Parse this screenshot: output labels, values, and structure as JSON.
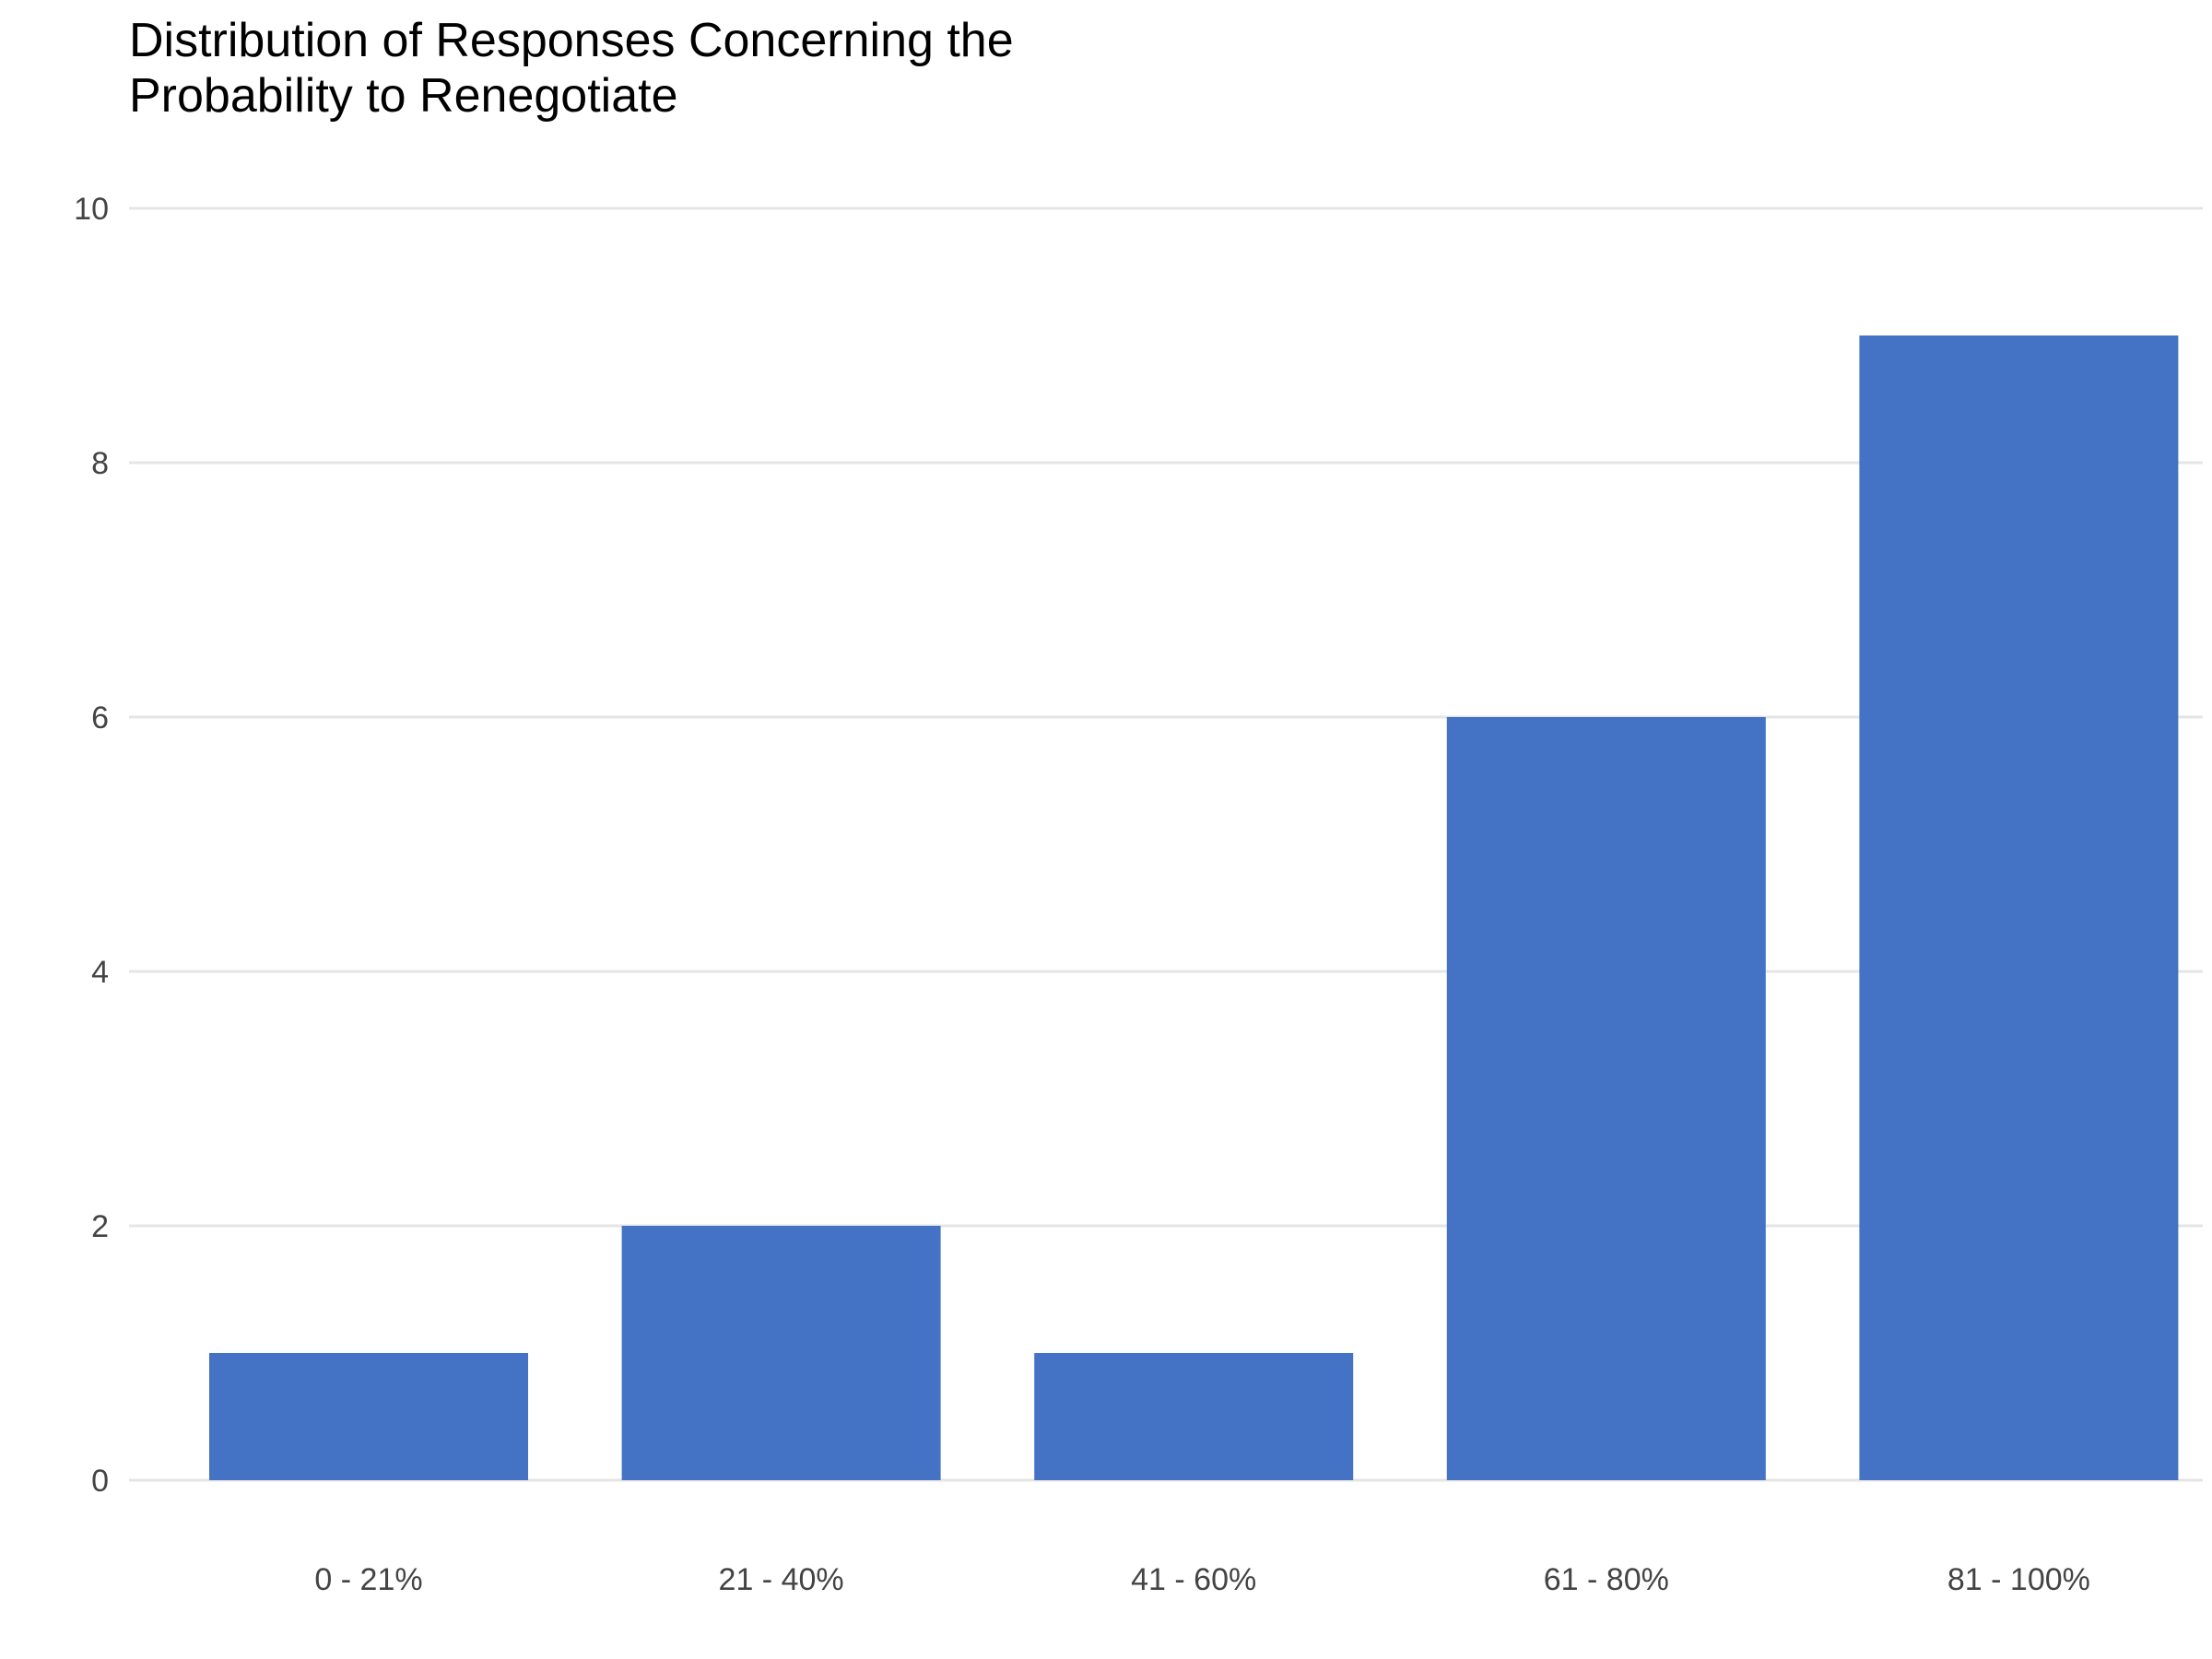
{
  "chart_data": {
    "type": "bar",
    "title": "Distribution of Responses Concerning the\nProbability to Renegotiate",
    "xlabel": "",
    "ylabel": "",
    "categories": [
      "0 - 21%",
      "21 - 40%",
      "41 - 60%",
      "61 - 80%",
      "81 - 100%"
    ],
    "values": [
      1,
      2,
      1,
      6,
      9
    ],
    "ylim": [
      0,
      10
    ],
    "yticks": [
      0,
      2,
      4,
      6,
      8,
      10
    ],
    "grid": "horizontal",
    "legend": "none",
    "colors": {
      "bar": "#4472C4",
      "grid": "#E5E5E5",
      "tick_text": "#444444",
      "title_text": "#000000"
    }
  }
}
